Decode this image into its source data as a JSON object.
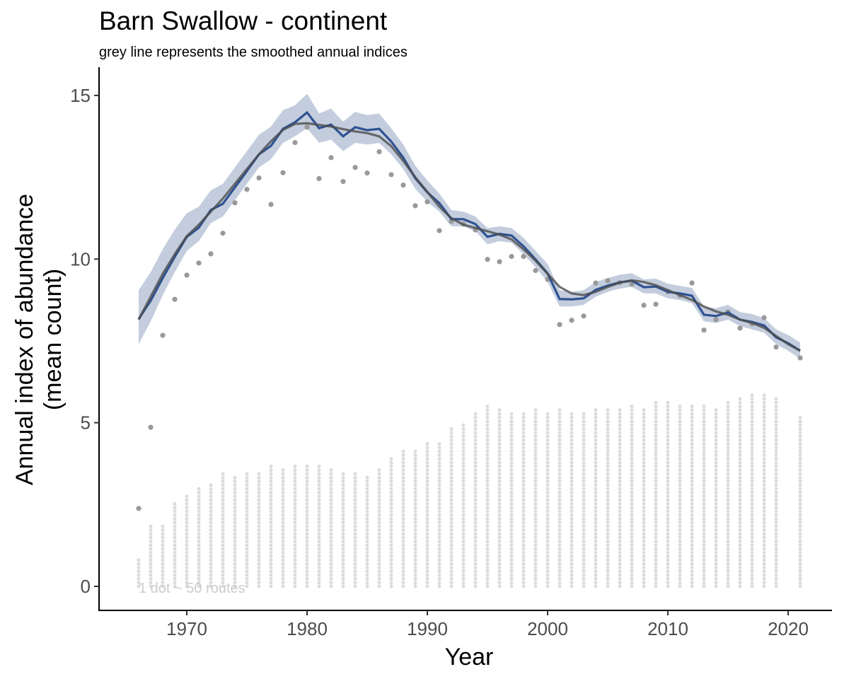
{
  "chart_data": {
    "type": "line",
    "title": "Barn Swallow - continent",
    "subtitle": "grey line represents the smoothed annual indices",
    "xlabel": "Year",
    "ylabel": [
      "Annual index of abundance",
      "(mean count)"
    ],
    "xlim": [
      1963,
      2024
    ],
    "ylim": [
      -0.75,
      15.7
    ],
    "xticks": [
      1970,
      1980,
      1990,
      2000,
      2010,
      2020
    ],
    "yticks": [
      0,
      5,
      10,
      15
    ],
    "grid": false,
    "annotation": "1 dot ~ 50 routes",
    "colors": {
      "band": "#c3cddd",
      "index": "#2f5292",
      "smooth": "#4d4d4d",
      "observed": "#999999",
      "route_dots": "#dcdcdc"
    },
    "x": [
      1966,
      1967,
      1968,
      1969,
      1970,
      1971,
      1972,
      1973,
      1974,
      1975,
      1976,
      1977,
      1978,
      1979,
      1980,
      1981,
      1982,
      1983,
      1984,
      1985,
      1986,
      1987,
      1988,
      1989,
      1990,
      1991,
      1992,
      1993,
      1994,
      1995,
      1996,
      1997,
      1998,
      1999,
      2000,
      2001,
      2002,
      2003,
      2004,
      2005,
      2006,
      2007,
      2008,
      2009,
      2010,
      2011,
      2012,
      2013,
      2014,
      2015,
      2016,
      2017,
      2018,
      2019,
      2020,
      2021
    ],
    "index": [
      8.17,
      8.73,
      9.42,
      10.07,
      10.68,
      10.96,
      11.5,
      11.69,
      12.19,
      12.69,
      13.2,
      13.46,
      13.98,
      14.18,
      14.48,
      14.0,
      14.11,
      13.75,
      14.03,
      13.94,
      13.98,
      13.59,
      13.1,
      12.47,
      12.04,
      11.71,
      11.22,
      11.22,
      11.07,
      10.68,
      10.77,
      10.72,
      10.39,
      9.99,
      9.56,
      8.78,
      8.77,
      8.8,
      9.06,
      9.19,
      9.29,
      9.34,
      9.14,
      9.16,
      9.0,
      8.95,
      8.88,
      8.3,
      8.26,
      8.37,
      8.15,
      8.08,
      7.97,
      7.61,
      7.43,
      7.2
    ],
    "index_lower": [
      7.4,
      8.1,
      8.9,
      9.6,
      10.25,
      10.55,
      11.1,
      11.3,
      11.8,
      12.3,
      12.8,
      13.05,
      13.55,
      13.75,
      14.0,
      13.55,
      13.65,
      13.3,
      13.55,
      13.5,
      13.55,
      13.2,
      12.75,
      12.15,
      11.75,
      11.45,
      11.0,
      11.0,
      10.85,
      10.45,
      10.55,
      10.5,
      10.15,
      9.75,
      9.3,
      8.55,
      8.55,
      8.6,
      8.85,
      9.0,
      9.1,
      9.15,
      8.95,
      8.95,
      8.8,
      8.75,
      8.65,
      8.1,
      8.05,
      8.15,
      7.95,
      7.85,
      7.75,
      7.4,
      7.2,
      6.95
    ],
    "index_upper": [
      9.05,
      9.6,
      10.3,
      10.9,
      11.4,
      11.6,
      12.1,
      12.3,
      12.8,
      13.3,
      13.8,
      14.05,
      14.55,
      14.7,
      15.05,
      14.45,
      14.6,
      14.2,
      14.5,
      14.4,
      14.45,
      14.0,
      13.5,
      12.85,
      12.4,
      12.0,
      11.5,
      11.45,
      11.3,
      10.95,
      11.0,
      10.95,
      10.65,
      10.25,
      9.85,
      9.05,
      9.0,
      9.05,
      9.3,
      9.42,
      9.52,
      9.57,
      9.38,
      9.4,
      9.25,
      9.18,
      9.12,
      8.55,
      8.5,
      8.6,
      8.38,
      8.32,
      8.2,
      7.85,
      7.68,
      7.45
    ],
    "smooth": [
      8.15,
      8.85,
      9.55,
      10.15,
      10.7,
      11.05,
      11.45,
      11.85,
      12.3,
      12.75,
      13.2,
      13.6,
      13.95,
      14.13,
      14.15,
      14.1,
      14.05,
      13.97,
      13.9,
      13.85,
      13.75,
      13.45,
      13.0,
      12.5,
      12.05,
      11.6,
      11.25,
      11.05,
      10.95,
      10.85,
      10.75,
      10.6,
      10.3,
      9.95,
      9.55,
      9.15,
      8.95,
      8.9,
      9.0,
      9.15,
      9.28,
      9.35,
      9.3,
      9.2,
      9.05,
      8.9,
      8.75,
      8.55,
      8.4,
      8.3,
      8.15,
      8.05,
      7.9,
      7.65,
      7.4,
      7.2
    ],
    "observed_mean": [
      2.38,
      4.86,
      7.67,
      8.77,
      9.51,
      9.88,
      10.16,
      10.79,
      11.72,
      12.13,
      12.48,
      11.67,
      12.64,
      13.56,
      14.03,
      12.46,
      13.1,
      12.37,
      12.8,
      12.63,
      13.28,
      12.58,
      12.26,
      11.63,
      11.75,
      10.87,
      11.15,
      11.07,
      10.89,
      9.99,
      9.92,
      10.08,
      10.08,
      9.65,
      9.38,
      8.0,
      8.13,
      8.26,
      9.27,
      9.34,
      9.28,
      9.23,
      8.59,
      8.62,
      9.0,
      8.88,
      9.27,
      7.83,
      8.15,
      8.39,
      7.89,
      8.02,
      8.21,
      7.31,
      null,
      6.98
    ],
    "route_dot_column_height": [
      0.84,
      1.84,
      1.92,
      2.6,
      2.83,
      3.05,
      3.15,
      3.5,
      3.4,
      3.5,
      3.5,
      3.72,
      3.6,
      3.72,
      3.72,
      3.72,
      3.6,
      3.5,
      3.5,
      3.4,
      3.6,
      3.9,
      4.15,
      4.15,
      4.39,
      4.39,
      4.82,
      5.03,
      5.38,
      5.6,
      5.49,
      5.38,
      5.28,
      5.49,
      5.38,
      5.49,
      5.28,
      5.38,
      5.49,
      5.49,
      5.49,
      5.6,
      5.49,
      5.71,
      5.71,
      5.6,
      5.6,
      5.6,
      5.49,
      5.71,
      5.82,
      5.92,
      5.92,
      5.82,
      null,
      5.16
    ]
  }
}
